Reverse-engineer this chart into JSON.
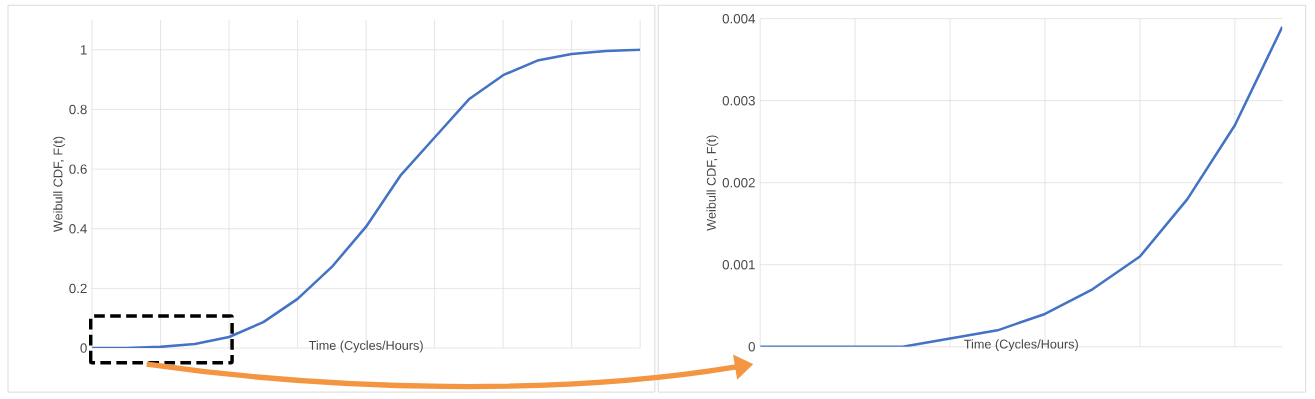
{
  "chart_data": [
    {
      "type": "line",
      "xlabel": "Time (Cycles/Hours)",
      "ylabel": "Weibull CDF, F(t)",
      "grid": true,
      "tick_labels": "y",
      "ylim": [
        0,
        1.1
      ],
      "yticks": [
        0,
        0.2,
        0.4,
        0.6,
        0.8,
        1
      ],
      "categories": [
        null,
        null,
        null,
        null,
        null,
        null,
        null,
        null,
        null,
        null,
        null,
        null,
        null,
        null,
        null,
        null,
        null
      ],
      "series": [
        {
          "color": "#4472c4",
          "values": [
            0,
            0,
            0.004,
            0.014,
            0.037,
            0.087,
            0.165,
            0.272,
            0.407,
            0.578,
            0.706,
            0.834,
            0.915,
            0.964,
            0.986,
            0.996,
            1.0
          ]
        }
      ]
    },
    {
      "type": "line",
      "xlabel": "Time (Cycles/Hours)",
      "ylabel": "Weibull CDF, F(t)",
      "grid": true,
      "tick_labels": "y",
      "ylim": [
        0,
        0.004
      ],
      "yticks": [
        0,
        0.001,
        0.002,
        0.003,
        0.004
      ],
      "categories": [
        null,
        null,
        null,
        null,
        null,
        null,
        null,
        null,
        null,
        null,
        null,
        null
      ],
      "series": [
        {
          "color": "#4472c4",
          "values": [
            0,
            0,
            0,
            0,
            0.0001,
            0.0002,
            0.0004,
            0.0007,
            0.0011,
            0.0018,
            0.0027,
            0.0039
          ]
        }
      ]
    }
  ]
}
